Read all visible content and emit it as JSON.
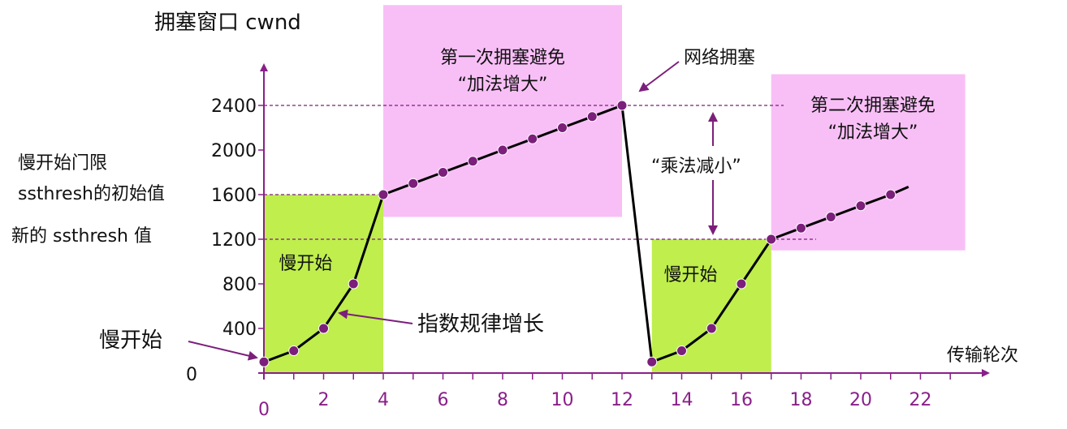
{
  "chart_data": {
    "type": "line",
    "title": "拥塞窗口 cwnd",
    "xlabel": "传输轮次",
    "ylabel": "拥塞窗口 cwnd",
    "xlim": [
      0,
      22
    ],
    "ylim": [
      0,
      2400
    ],
    "x_ticks": [
      0,
      2,
      4,
      6,
      8,
      10,
      12,
      14,
      16,
      18,
      20,
      22
    ],
    "y_ticks": [
      0,
      400,
      800,
      1200,
      1600,
      2000,
      2400
    ],
    "series": [
      {
        "points": [
          [
            0,
            100
          ],
          [
            1,
            200
          ],
          [
            2,
            400
          ],
          [
            3,
            800
          ],
          [
            4,
            1600
          ],
          [
            5,
            1700
          ],
          [
            6,
            1800
          ],
          [
            7,
            1900
          ],
          [
            8,
            2000
          ],
          [
            9,
            2100
          ],
          [
            10,
            2200
          ],
          [
            11,
            2300
          ],
          [
            12,
            2400
          ],
          [
            13,
            100
          ],
          [
            14,
            200
          ],
          [
            15,
            400
          ],
          [
            16,
            800
          ],
          [
            17,
            1200
          ],
          [
            18,
            1300
          ],
          [
            19,
            1400
          ],
          [
            20,
            1500
          ],
          [
            21,
            1600
          ]
        ],
        "trailing_point": [
          21.6,
          1670
        ]
      }
    ],
    "reference_lines": [
      2400,
      1600,
      1200
    ],
    "regions": [
      {
        "name": "slow-start-1",
        "x": [
          0,
          4
        ],
        "y": [
          0,
          1600
        ],
        "color": "#bfee4d",
        "label": "慢开始"
      },
      {
        "name": "avoid-1",
        "x": [
          4,
          12
        ],
        "y": [
          1400,
          3300
        ],
        "color": "#f8bff6",
        "label_lines": [
          "第一次拥塞避免",
          "“加法增大”"
        ]
      },
      {
        "name": "slow-start-2",
        "x": [
          13,
          17
        ],
        "y": [
          0,
          1200
        ],
        "color": "#bfee4d",
        "label": "慢开始"
      },
      {
        "name": "avoid-2",
        "x": [
          17,
          23.5
        ],
        "y": [
          1100,
          2680
        ],
        "color": "#f8bff6",
        "label_lines": [
          "第二次拥塞避免",
          "“加法增大”"
        ]
      }
    ],
    "annotations": {
      "ssthresh_initial_lines": [
        "慢开始门限",
        "ssthresh的初始值"
      ],
      "ssthresh_new": "新的 ssthresh 值",
      "slow_start_start": "慢开始",
      "exponential": "指数规律增长",
      "congestion": "网络拥塞",
      "multiplicative": "“乘法减小”"
    },
    "colors": {
      "line": "#000000",
      "marker": "#7b1f7b",
      "axis": "#8a1f8a",
      "dashed": "#7b1f7b"
    }
  }
}
